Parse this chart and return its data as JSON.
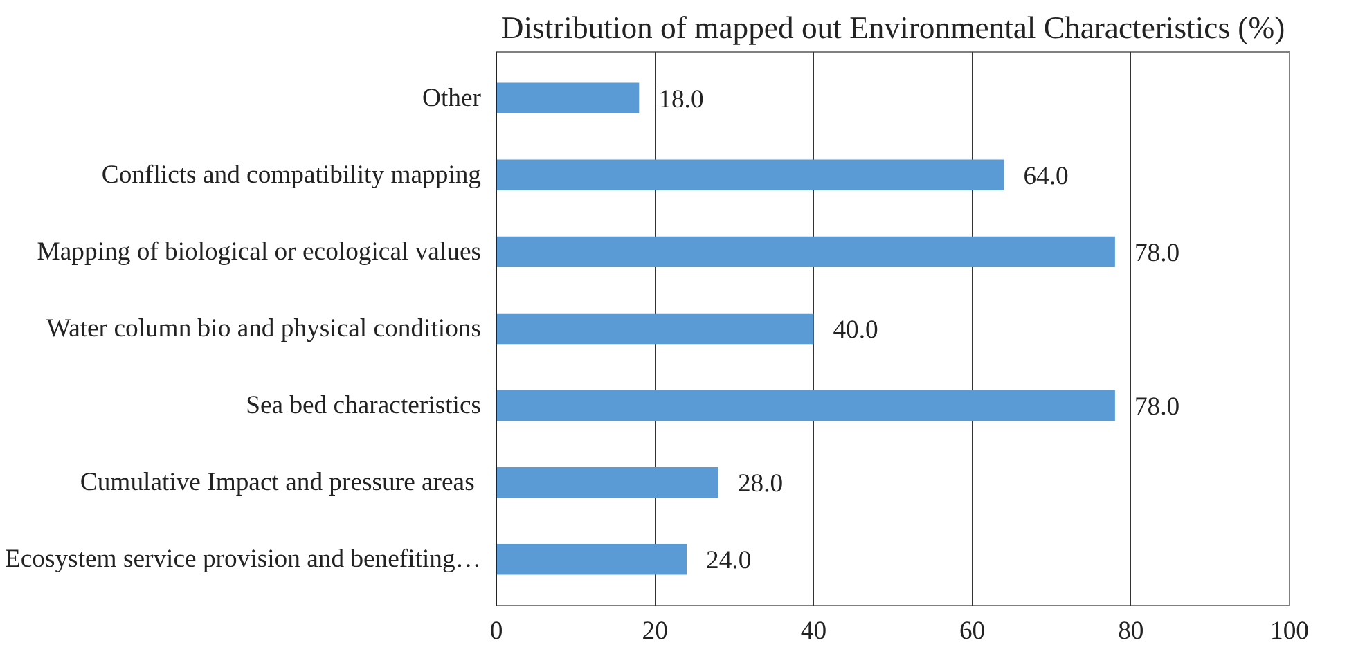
{
  "chart_data": {
    "type": "bar",
    "orientation": "horizontal",
    "title": "Distribution of mapped out Environmental Characteristics (%)",
    "categories": [
      "Other",
      "Conflicts and compatibility mapping",
      "Mapping of biological or ecological values",
      "Water column bio and physical conditions",
      "Sea bed characteristics",
      "Cumulative Impact and pressure areas ",
      "Ecosystem service provision and benefiting…"
    ],
    "values": [
      18.0,
      64.0,
      78.0,
      40.0,
      78.0,
      28.0,
      24.0
    ],
    "color": "#5b9bd5",
    "xlim": [
      0,
      100
    ],
    "xticks": [
      0,
      20,
      40,
      60,
      80,
      100
    ],
    "value_labels": [
      "18.0",
      "64.0",
      "78.0",
      "40.0",
      "78.0",
      "28.0",
      "24.0"
    ],
    "grid": "x"
  }
}
